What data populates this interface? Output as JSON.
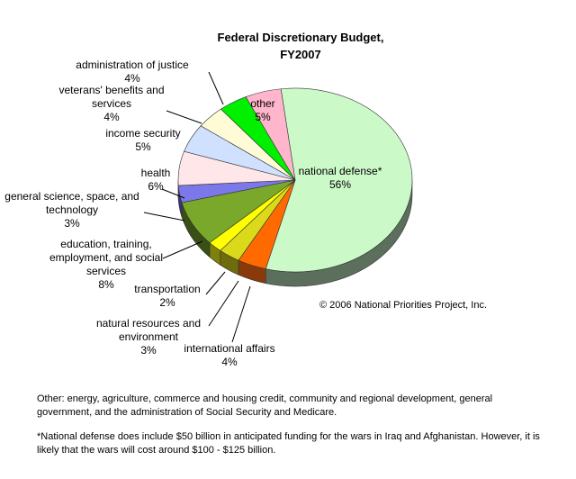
{
  "chart_data": {
    "type": "pie",
    "title_lines": [
      "Federal Discretionary Budget,",
      "FY2007"
    ],
    "copyright": "© 2006 National Priorities Project, Inc.",
    "slices": [
      {
        "key": "defense",
        "label_lines": [
          "national defense*",
          "56%"
        ],
        "value": 56,
        "color": "#ccf9c8",
        "side": "#5c6e5c"
      },
      {
        "key": "intl",
        "label_lines": [
          "international affairs",
          "4%"
        ],
        "value": 4,
        "color": "#ff6a00",
        "side": "#8a3a0a"
      },
      {
        "key": "natres",
        "label_lines": [
          "natural resources and",
          "environment",
          "3%"
        ],
        "value": 3,
        "color": "#dada1a",
        "side": "#6f6c0c"
      },
      {
        "key": "transport",
        "label_lines": [
          "transportation",
          "2%"
        ],
        "value": 2,
        "color": "#ffff00",
        "side": "#7f7f0c"
      },
      {
        "key": "education",
        "label_lines": [
          "education, training,",
          "employment, and social",
          "services",
          "8%"
        ],
        "value": 8,
        "color": "#7aa82a",
        "side": "#394f16"
      },
      {
        "key": "science",
        "label_lines": [
          "general science, space, and",
          "technology",
          "3%"
        ],
        "value": 3,
        "color": "#7b78ea",
        "side": "#36357a"
      },
      {
        "key": "health",
        "label_lines": [
          "health",
          "6%"
        ],
        "value": 6,
        "color": "#ffe6e8",
        "side": "#7a5e60"
      },
      {
        "key": "income",
        "label_lines": [
          "income security",
          "5%"
        ],
        "value": 5,
        "color": "#cfe1ff",
        "side": "#5a6a86"
      },
      {
        "key": "veterans",
        "label_lines": [
          "veterans' benefits and",
          "services",
          "4%"
        ],
        "value": 4,
        "color": "#fffbd6",
        "side": "#7a7760"
      },
      {
        "key": "justice",
        "label_lines": [
          "administration of justice",
          "4%"
        ],
        "value": 4,
        "color": "#00f000",
        "side": "#0a6a0a"
      },
      {
        "key": "other",
        "label_lines": [
          "other",
          "5%"
        ],
        "value": 5,
        "color": "#ffb6cc",
        "side": "#7a4a58"
      }
    ],
    "extra_slice": {
      "key": "other2",
      "value": 0,
      "color": "#ffb050"
    }
  },
  "notes": {
    "other": "Other:  energy, agriculture, commerce and housing credit, community and regional development, general government, and the administration of Social Security and Medicare.",
    "defense": "*National defense does include $50 billion in anticipated funding for the wars in Iraq and Afghanistan.  However, it is likely that the wars will cost around $100 - $125 billion."
  }
}
